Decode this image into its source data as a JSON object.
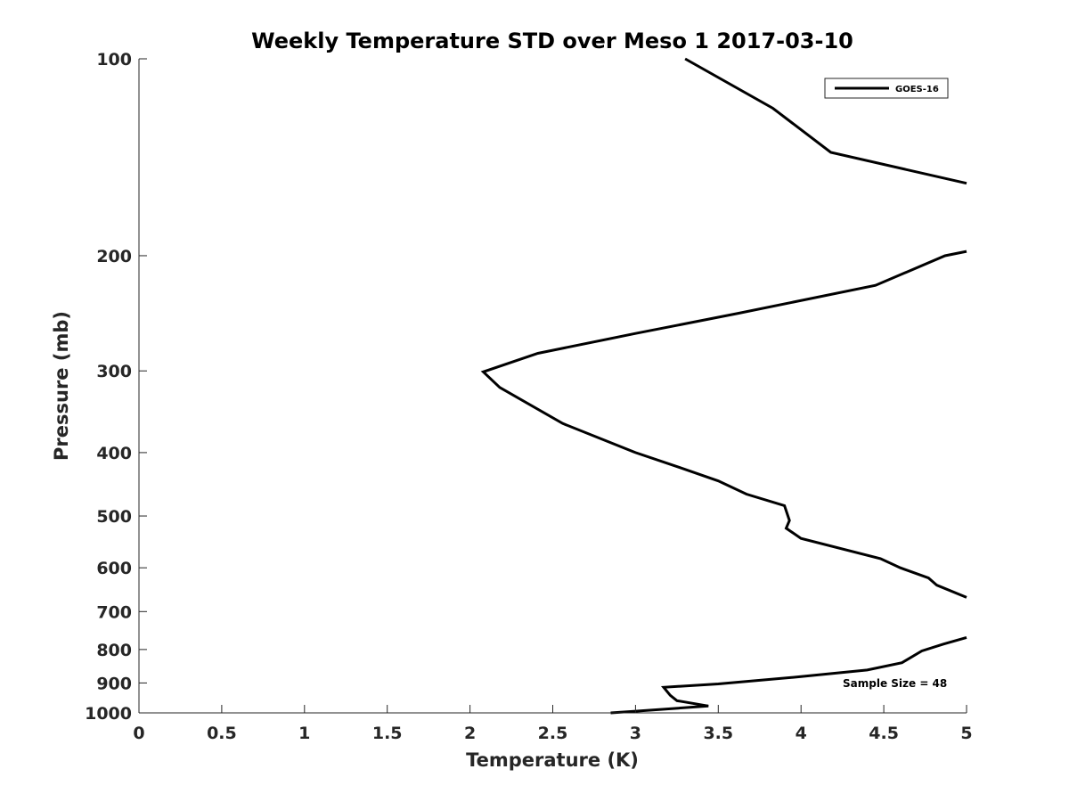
{
  "chart_data": {
    "type": "line",
    "title": "Weekly Temperature STD over Meso 1 2017-03-10",
    "xlabel": "Temperature (K)",
    "ylabel": "Pressure (mb)",
    "xlim": [
      0,
      5
    ],
    "ylim": [
      100,
      1000
    ],
    "y_scale": "log",
    "y_reversed": true,
    "xticks": [
      0,
      0.5,
      1,
      1.5,
      2,
      2.5,
      3,
      3.5,
      4,
      4.5,
      5
    ],
    "xtick_labels": [
      "0",
      "0.5",
      "1",
      "1.5",
      "2",
      "2.5",
      "3",
      "3.5",
      "4",
      "4.5",
      "5"
    ],
    "yticks": [
      100,
      200,
      300,
      400,
      500,
      600,
      700,
      800,
      900,
      1000
    ],
    "ytick_labels": [
      "100",
      "200",
      "300",
      "400",
      "500",
      "600",
      "700",
      "800",
      "900",
      "1000"
    ],
    "grid": false,
    "legend": {
      "position": "top-right",
      "entries": [
        "GOES-16"
      ]
    },
    "annotations": [
      "Sample Size = 48"
    ],
    "series": [
      {
        "name": "GOES-16",
        "color": "#000000",
        "points": [
          [
            3.3,
            100
          ],
          [
            3.83,
            119
          ],
          [
            4.18,
            139
          ],
          [
            5.0,
            155
          ],
          [
            5.0,
            197
          ],
          [
            4.87,
            200
          ],
          [
            4.45,
            222
          ],
          [
            3.62,
            245
          ],
          [
            3.0,
            263
          ],
          [
            2.41,
            282
          ],
          [
            2.08,
            301
          ],
          [
            2.18,
            318
          ],
          [
            2.56,
            361
          ],
          [
            3.0,
            400
          ],
          [
            3.26,
            421
          ],
          [
            3.5,
            442
          ],
          [
            3.67,
            463
          ],
          [
            3.9,
            482
          ],
          [
            3.93,
            508
          ],
          [
            3.91,
            522
          ],
          [
            4.0,
            541
          ],
          [
            4.48,
            581
          ],
          [
            4.6,
            600
          ],
          [
            4.77,
            622
          ],
          [
            4.82,
            638
          ],
          [
            5.0,
            666
          ],
          [
            5.0,
            767
          ],
          [
            4.86,
            785
          ],
          [
            4.73,
            804
          ],
          [
            4.61,
            838
          ],
          [
            4.4,
            860
          ],
          [
            4.0,
            880
          ],
          [
            3.5,
            903
          ],
          [
            3.17,
            914
          ],
          [
            3.21,
            940
          ],
          [
            3.25,
            958
          ],
          [
            3.44,
            976
          ],
          [
            3.0,
            994
          ],
          [
            2.85,
            1000
          ]
        ],
        "breaks_after_index": [
          3,
          25
        ]
      }
    ]
  }
}
